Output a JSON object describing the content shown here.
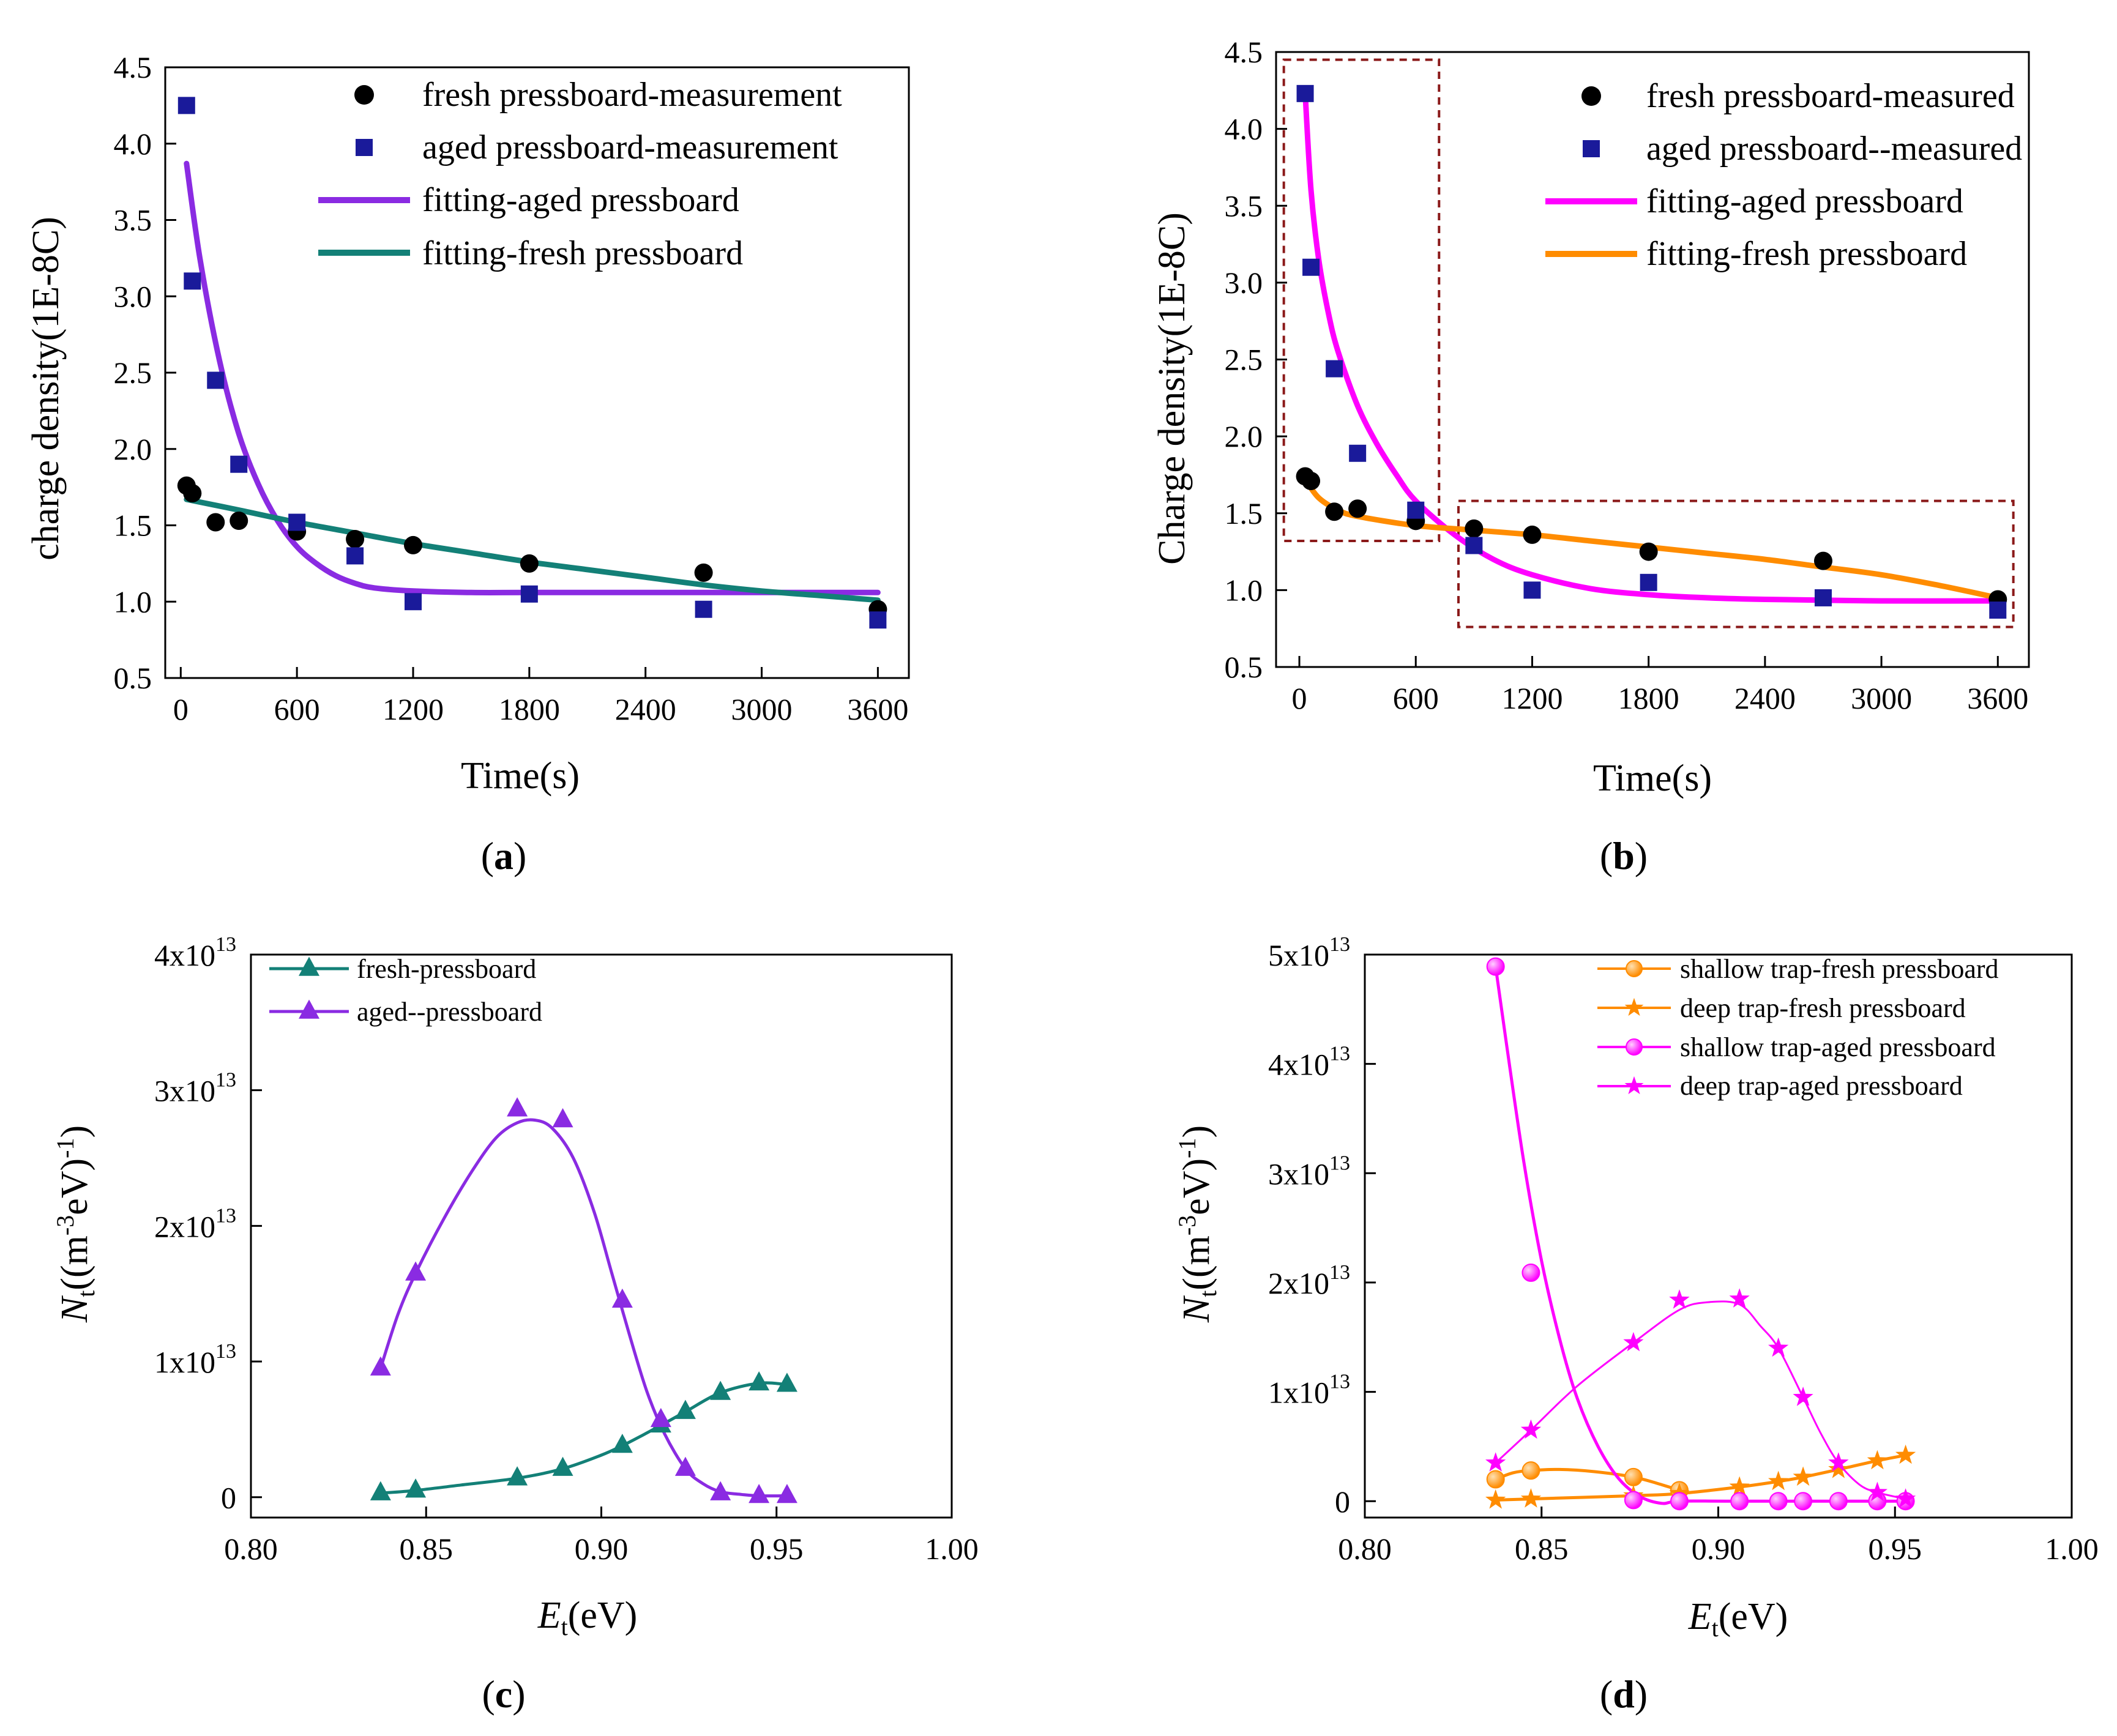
{
  "panels": [
    {
      "label_open": "(",
      "label_letter": "a",
      "label_close": ")",
      "legend": [
        "fresh pressboard-measurement",
        "aged pressboard-measurement",
        "fitting-aged pressboard",
        "fitting-fresh pressboard"
      ]
    },
    {
      "label_open": "(",
      "label_letter": "b",
      "label_close": ")",
      "legend": [
        "fresh pressboard-measured",
        "aged pressboard--measured",
        "fitting-aged pressboard",
        "fitting-fresh pressboard"
      ]
    },
    {
      "label_open": "(",
      "label_letter": "c",
      "label_close": ")",
      "legend": [
        "fresh-pressboard",
        "aged--pressboard"
      ]
    },
    {
      "label_open": "(",
      "label_letter": "d",
      "label_close": ")",
      "legend": [
        "shallow trap-fresh pressboard",
        "deep trap-fresh pressboard",
        "shallow trap-aged pressboard",
        "deep trap-aged pressboard"
      ]
    }
  ],
  "colors": {
    "black": "#000000",
    "navy": "#1a1a9a",
    "purple": "#8a2be2",
    "teal": "#138077",
    "magenta": "#ff00ff",
    "orange": "#ff8c00",
    "box": "#8b1a1a"
  },
  "chart_data": [
    {
      "type": "scatter",
      "xlabel": "Time(s)",
      "ylabel": "charge density(1E-8C)",
      "xlim": [
        -80,
        3760
      ],
      "ylim": [
        0.5,
        4.5
      ],
      "xticks": [
        "0",
        "600",
        "1200",
        "1800",
        "2400",
        "3000",
        "3600"
      ],
      "yticks": [
        "0.5",
        "1.0",
        "1.5",
        "2.0",
        "2.5",
        "3.0",
        "3.5",
        "4.0",
        "4.5"
      ],
      "series": [
        {
          "name": "fresh pressboard-measurement",
          "marker": "circle",
          "color": "#000000",
          "x": [
            30,
            60,
            180,
            300,
            600,
            900,
            1200,
            1800,
            2700,
            3600
          ],
          "y": [
            1.76,
            1.71,
            1.52,
            1.53,
            1.46,
            1.41,
            1.37,
            1.25,
            1.19,
            0.95
          ]
        },
        {
          "name": "aged pressboard-measurement",
          "marker": "square",
          "color": "#1a1a9a",
          "x": [
            30,
            60,
            180,
            300,
            600,
            900,
            1200,
            1800,
            2700,
            3600
          ],
          "y": [
            4.25,
            3.1,
            2.45,
            1.9,
            1.52,
            1.3,
            1.0,
            1.05,
            0.95,
            0.88
          ]
        },
        {
          "name": "fitting-aged pressboard",
          "marker": "line",
          "color": "#8a2be2",
          "x": [
            30,
            100,
            200,
            300,
            400,
            500,
            600,
            700,
            800,
            900,
            1000,
            1200,
            1500,
            1800,
            2400,
            3000,
            3600
          ],
          "y": [
            3.87,
            3.24,
            2.58,
            2.1,
            1.77,
            1.53,
            1.36,
            1.25,
            1.17,
            1.12,
            1.09,
            1.07,
            1.06,
            1.06,
            1.06,
            1.06,
            1.06
          ]
        },
        {
          "name": "fitting-fresh pressboard",
          "marker": "line",
          "color": "#138077",
          "x": [
            30,
            300,
            600,
            900,
            1200,
            1500,
            1800,
            2100,
            2400,
            2700,
            3000,
            3300,
            3600
          ],
          "y": [
            1.67,
            1.6,
            1.52,
            1.45,
            1.38,
            1.32,
            1.26,
            1.21,
            1.16,
            1.11,
            1.07,
            1.04,
            1.01
          ]
        }
      ]
    },
    {
      "type": "scatter",
      "xlabel": "Time(s)",
      "ylabel": "Charge density(1E-8C)",
      "xlim": [
        -120,
        3760
      ],
      "ylim": [
        0.5,
        4.5
      ],
      "xticks": [
        "0",
        "600",
        "1200",
        "1800",
        "2400",
        "3000",
        "3600"
      ],
      "yticks": [
        "0.5",
        "1.0",
        "1.5",
        "2.0",
        "2.5",
        "3.0",
        "3.5",
        "4.0",
        "4.5"
      ],
      "boxes": [
        {
          "x": [
            -80,
            720
          ],
          "y": [
            1.32,
            4.45
          ]
        },
        {
          "x": [
            820,
            3680
          ],
          "y": [
            0.76,
            1.58
          ]
        }
      ],
      "series": [
        {
          "name": "fresh pressboard-measured",
          "marker": "circle",
          "color": "#000000",
          "x": [
            30,
            60,
            180,
            300,
            600,
            900,
            1200,
            1800,
            2700,
            3600
          ],
          "y": [
            1.74,
            1.71,
            1.51,
            1.53,
            1.45,
            1.4,
            1.36,
            1.25,
            1.19,
            0.94
          ]
        },
        {
          "name": "aged pressboard--measured",
          "marker": "square",
          "color": "#1a1a9a",
          "x": [
            30,
            60,
            180,
            300,
            600,
            900,
            1200,
            1800,
            2700,
            3600
          ],
          "y": [
            4.23,
            3.1,
            2.44,
            1.89,
            1.52,
            1.29,
            1.0,
            1.05,
            0.95,
            0.87
          ]
        },
        {
          "name": "fitting-aged pressboard",
          "marker": "line",
          "color": "#ff00ff",
          "x": [
            30,
            60,
            100,
            150,
            200,
            300,
            400,
            500,
            600,
            800,
            1000,
            1200,
            1500,
            1800,
            2100,
            2400,
            3000,
            3600
          ],
          "y": [
            4.23,
            3.6,
            3.15,
            2.8,
            2.55,
            2.2,
            1.95,
            1.75,
            1.58,
            1.36,
            1.2,
            1.1,
            1.01,
            0.97,
            0.95,
            0.94,
            0.93,
            0.93
          ]
        },
        {
          "name": "fitting-fresh pressboard",
          "marker": "line",
          "color": "#ff8c00",
          "x": [
            30,
            100,
            200,
            300,
            600,
            900,
            1200,
            1500,
            1800,
            2100,
            2400,
            2700,
            3000,
            3300,
            3600
          ],
          "y": [
            1.72,
            1.6,
            1.52,
            1.48,
            1.42,
            1.39,
            1.36,
            1.32,
            1.28,
            1.24,
            1.2,
            1.15,
            1.1,
            1.03,
            0.95
          ]
        }
      ]
    },
    {
      "type": "line",
      "xlabel_main": "E",
      "xlabel_sub": "t",
      "xlabel_rest": "(eV)",
      "ylabel_main": "N",
      "ylabel_sub": "t",
      "ylabel_rest1": "((m",
      "ylabel_sup1": "-3",
      "ylabel_rest2": "eV)",
      "ylabel_sup2": "-1",
      "ylabel_rest3": ")",
      "xlim": [
        0.8,
        1.0
      ],
      "ylim": [
        -0.15,
        4.0
      ],
      "xticks": [
        "0.80",
        "0.85",
        "0.90",
        "0.95",
        "1.00"
      ],
      "yticks": [
        {
          "v": 0,
          "base": "0",
          "exp": ""
        },
        {
          "v": 1,
          "base": "1x10",
          "exp": "13"
        },
        {
          "v": 2,
          "base": "2x10",
          "exp": "13"
        },
        {
          "v": 3,
          "base": "3x10",
          "exp": "13"
        },
        {
          "v": 4,
          "base": "4x10",
          "exp": "13"
        }
      ],
      "y_unit": "1e13",
      "series": [
        {
          "name": "fresh-pressboard",
          "marker": "triangle",
          "color": "#138077",
          "x": [
            0.837,
            0.847,
            0.876,
            0.889,
            0.906,
            0.917,
            0.924,
            0.934,
            0.945,
            0.953
          ],
          "y": [
            0.03,
            0.05,
            0.14,
            0.21,
            0.38,
            0.53,
            0.63,
            0.77,
            0.84,
            0.83
          ],
          "fit_x": [
            0.837,
            0.847,
            0.86,
            0.876,
            0.889,
            0.9,
            0.906,
            0.912,
            0.917,
            0.924,
            0.934,
            0.945,
            0.953
          ],
          "fit_y": [
            0.03,
            0.05,
            0.09,
            0.14,
            0.21,
            0.31,
            0.38,
            0.46,
            0.53,
            0.63,
            0.77,
            0.84,
            0.83
          ]
        },
        {
          "name": "aged--pressboard",
          "marker": "triangle",
          "color": "#8a2be2",
          "x": [
            0.837,
            0.847,
            0.876,
            0.889,
            0.906,
            0.917,
            0.924,
            0.934,
            0.945,
            0.953
          ],
          "y": [
            0.95,
            1.65,
            2.86,
            2.78,
            1.45,
            0.57,
            0.21,
            0.03,
            0.01,
            0.01
          ],
          "fit_x": [
            0.837,
            0.842,
            0.847,
            0.855,
            0.863,
            0.87,
            0.876,
            0.881,
            0.886,
            0.892,
            0.898,
            0.903,
            0.908,
            0.913,
            0.918,
            0.924,
            0.929,
            0.934,
            0.94,
            0.945,
            0.953
          ],
          "fit_y": [
            0.95,
            1.35,
            1.65,
            2.05,
            2.4,
            2.65,
            2.76,
            2.78,
            2.72,
            2.5,
            2.1,
            1.65,
            1.2,
            0.78,
            0.47,
            0.21,
            0.1,
            0.04,
            0.02,
            0.01,
            0.01
          ]
        }
      ]
    },
    {
      "type": "line",
      "xlabel_main": "E",
      "xlabel_sub": "t",
      "xlabel_rest": "(eV)",
      "ylabel_main": "N",
      "ylabel_sub": "t",
      "ylabel_rest1": "((m",
      "ylabel_sup1": "-3",
      "ylabel_rest2": "eV)",
      "ylabel_sup2": "-1",
      "ylabel_rest3": ")",
      "xlim": [
        0.8,
        1.0
      ],
      "ylim": [
        -0.15,
        5.0
      ],
      "xticks": [
        "0.80",
        "0.85",
        "0.90",
        "0.95",
        "1.00"
      ],
      "yticks": [
        {
          "v": 0,
          "base": "0",
          "exp": ""
        },
        {
          "v": 1,
          "base": "1x10",
          "exp": "13"
        },
        {
          "v": 2,
          "base": "2x10",
          "exp": "13"
        },
        {
          "v": 3,
          "base": "3x10",
          "exp": "13"
        },
        {
          "v": 4,
          "base": "4x10",
          "exp": "13"
        },
        {
          "v": 5,
          "base": "5x10",
          "exp": "13"
        }
      ],
      "y_unit": "1e13",
      "series": [
        {
          "name": "shallow trap-fresh pressboard",
          "marker": "ball",
          "color": "#ff8c00",
          "x": [
            0.837,
            0.847,
            0.876,
            0.889
          ],
          "y": [
            0.2,
            0.28,
            0.22,
            0.1
          ],
          "fit_x": [
            0.837,
            0.842,
            0.847,
            0.855,
            0.865,
            0.876,
            0.883,
            0.889
          ],
          "fit_y": [
            0.2,
            0.26,
            0.28,
            0.29,
            0.27,
            0.22,
            0.16,
            0.1
          ]
        },
        {
          "name": "deep trap-fresh pressboard",
          "marker": "star",
          "color": "#ff8c00",
          "x": [
            0.837,
            0.847,
            0.876,
            0.889,
            0.906,
            0.917,
            0.924,
            0.934,
            0.945,
            0.953
          ],
          "y": [
            0.01,
            0.02,
            0.05,
            0.07,
            0.13,
            0.18,
            0.22,
            0.29,
            0.37,
            0.42
          ],
          "fit_x": [
            0.837,
            0.847,
            0.876,
            0.889,
            0.906,
            0.917,
            0.924,
            0.934,
            0.945,
            0.953
          ],
          "fit_y": [
            0.01,
            0.02,
            0.05,
            0.07,
            0.13,
            0.18,
            0.22,
            0.29,
            0.37,
            0.42
          ]
        },
        {
          "name": "shallow trap-aged pressboard",
          "marker": "ball",
          "color": "#ff00ff",
          "x": [
            0.837,
            0.847,
            0.876,
            0.889,
            0.906,
            0.917,
            0.924,
            0.934,
            0.945,
            0.953
          ],
          "y": [
            4.89,
            2.09,
            0.01,
            0.0,
            0.0,
            0.0,
            0.0,
            0.0,
            0.0,
            0.0
          ],
          "fit_x": [
            0.837,
            0.84,
            0.845,
            0.85,
            0.855,
            0.86,
            0.866,
            0.872,
            0.878,
            0.884,
            0.889,
            0.906,
            0.953
          ],
          "fit_y": [
            4.89,
            4.2,
            3.1,
            2.2,
            1.5,
            0.95,
            0.5,
            0.2,
            0.04,
            -0.02,
            0.0,
            0.0,
            0.0
          ]
        },
        {
          "name": "deep trap-aged pressboard",
          "marker": "star",
          "color": "#ff00ff",
          "x": [
            0.837,
            0.847,
            0.876,
            0.889,
            0.906,
            0.917,
            0.924,
            0.934,
            0.945,
            0.953
          ],
          "y": [
            0.35,
            0.65,
            1.45,
            1.84,
            1.85,
            1.4,
            0.95,
            0.35,
            0.08,
            0.02
          ],
          "fit_x": [
            0.837,
            0.847,
            0.86,
            0.876,
            0.889,
            0.897,
            0.906,
            0.912,
            0.917,
            0.924,
            0.929,
            0.934,
            0.94,
            0.945,
            0.953
          ],
          "fit_y": [
            0.35,
            0.65,
            1.05,
            1.45,
            1.75,
            1.82,
            1.8,
            1.6,
            1.4,
            0.95,
            0.62,
            0.35,
            0.15,
            0.08,
            0.02
          ]
        }
      ]
    }
  ]
}
